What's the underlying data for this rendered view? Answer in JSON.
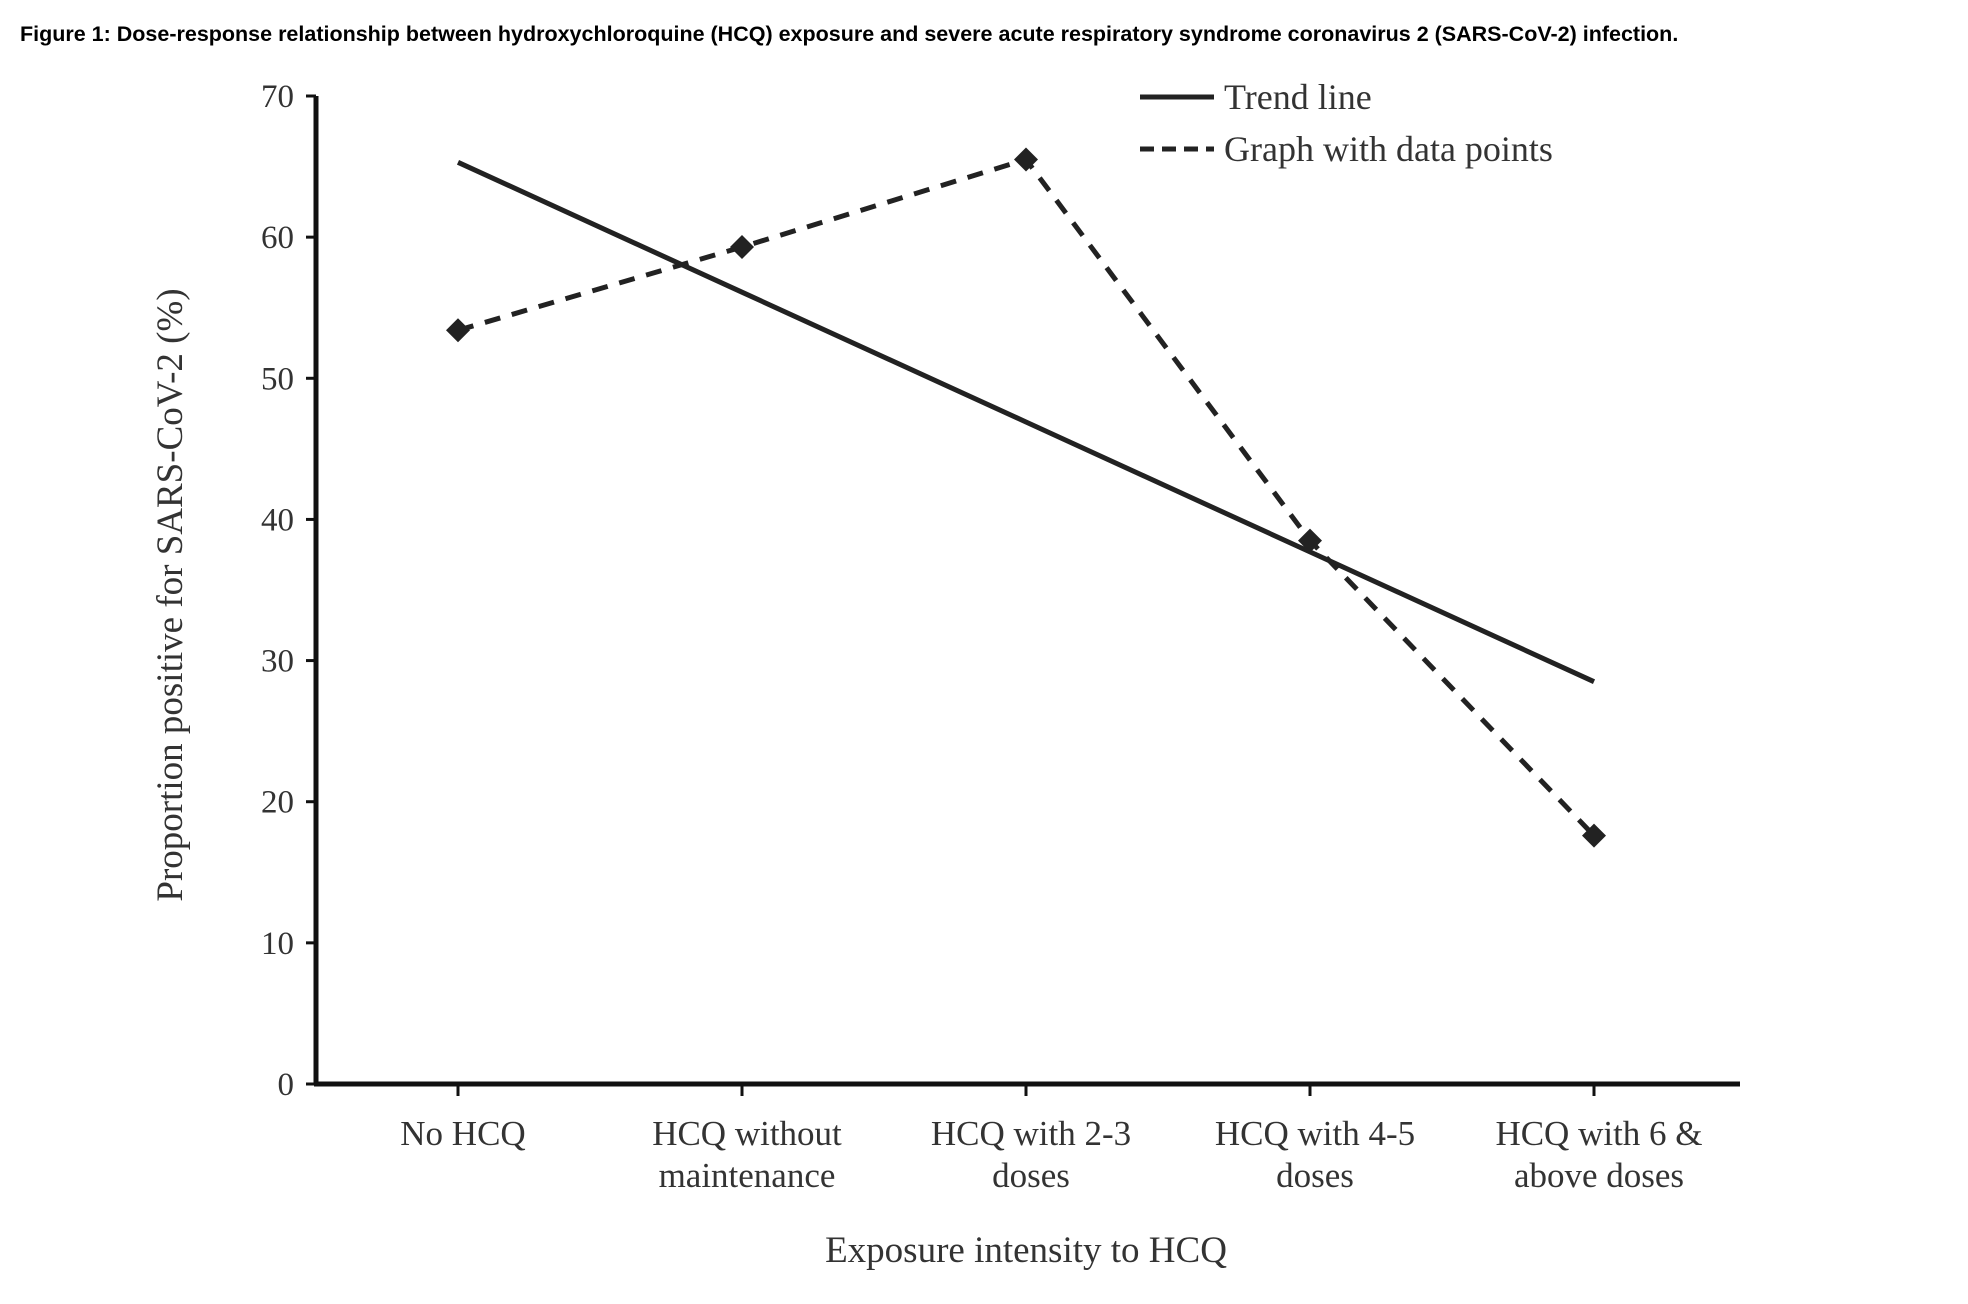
{
  "caption": "Figure 1: Dose-response relationship between hydroxychloroquine (HCQ) exposure and severe acute respiratory syndrome coronavirus 2 (SARS-CoV-2) infection.",
  "chart_data": {
    "type": "line",
    "title": "",
    "xlabel": "Exposure intensity to HCQ",
    "ylabel": "Proportion positive for SARS-CoV-2 (%)",
    "ylim": [
      0,
      70
    ],
    "yticks": [
      0,
      10,
      20,
      30,
      40,
      50,
      60,
      70
    ],
    "categories": [
      [
        "No HCQ"
      ],
      [
        "HCQ without",
        "maintenance"
      ],
      [
        "HCQ with 2-3",
        "doses"
      ],
      [
        "HCQ with 4-5",
        "doses"
      ],
      [
        "HCQ with 6 &",
        "above doses"
      ]
    ],
    "grid": false,
    "legend_position": "top-right",
    "series": [
      {
        "name": "Trend line",
        "style": "solid",
        "markers": false,
        "values": [
          65.3,
          56.1,
          46.9,
          37.7,
          28.5
        ]
      },
      {
        "name": "Graph with data points",
        "style": "dashed",
        "markers": true,
        "values": [
          53.4,
          59.3,
          65.5,
          38.5,
          17.6
        ]
      }
    ],
    "colors": {
      "line": "#222222",
      "axis": "#111111",
      "text": "#333333"
    }
  }
}
